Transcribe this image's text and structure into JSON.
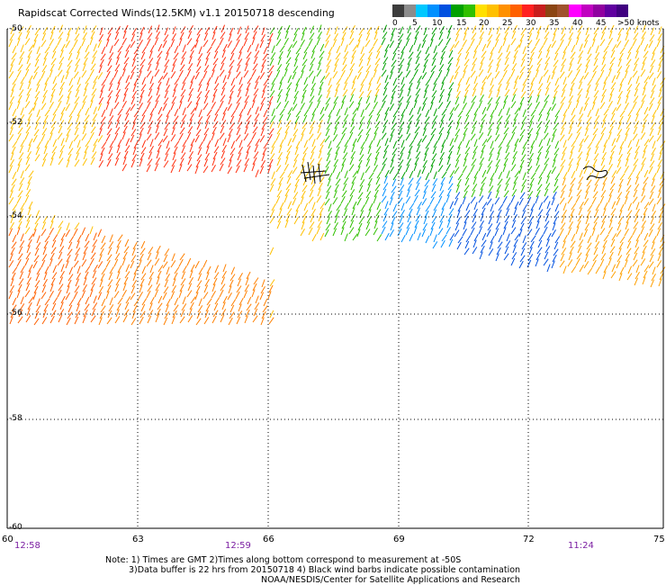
{
  "title": "Rapidscat Corrected Winds(12.5KM) v1.1 20150718 descending",
  "legend": {
    "labels": [
      "0",
      "5",
      "10",
      "15",
      "20",
      "25",
      "30",
      "35",
      "40",
      "45",
      ">50 knots"
    ],
    "colors": [
      "#3c3c3c",
      "#8c8c8c",
      "#00c8ff",
      "#0090ff",
      "#0050e0",
      "#00a000",
      "#30c000",
      "#ffe000",
      "#ffc000",
      "#ff9000",
      "#ff6000",
      "#ff2020",
      "#c81e1e",
      "#8b4513",
      "#a0522d",
      "#ff00ff",
      "#c000c0",
      "#9000a0",
      "#6000a0",
      "#400080"
    ]
  },
  "map": {
    "lat_labels": [
      "-50",
      "-52",
      "-54",
      "-56",
      "-58",
      "-60"
    ],
    "lon_labels": [
      "60",
      "63",
      "66",
      "69",
      "72",
      "75"
    ],
    "time_labels": [
      "12:58",
      "12:59",
      "11:24"
    ]
  },
  "notes": [
    "Note: 1) Times are GMT 2)Times along bottom correspond to measurement at -50S",
    "3)Data buffer is 22 hrs from 20150718 4) Black wind barbs indicate possible contamination",
    "NOAA/NESDIS/Center for Satellite Applications and Research"
  ]
}
